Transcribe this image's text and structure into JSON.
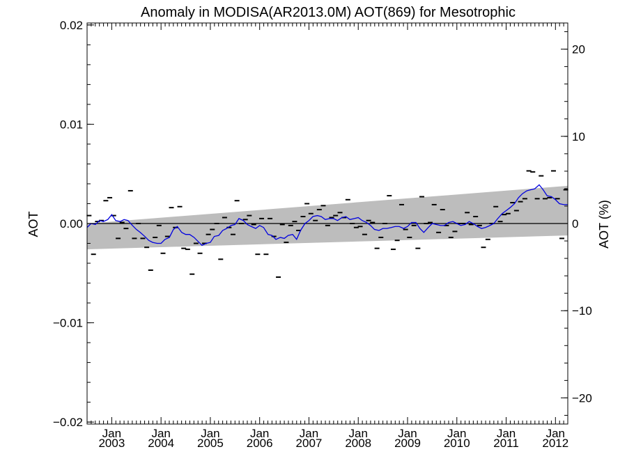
{
  "chart_data": {
    "type": "line",
    "title": "Anomaly in MODISA(AR2013.0M) AOT(869) for Mesotrophic",
    "ylabel": "AOT",
    "ylabel_right": "AOT (%)",
    "xlabel": "",
    "x_range": [
      2002.5,
      2012.25
    ],
    "ylim": [
      -0.0202,
      0.0202
    ],
    "ylim_right": [
      -23,
      23
    ],
    "y_ticks": [
      {
        "value": 0.02,
        "label": "0.02"
      },
      {
        "value": 0.01,
        "label": "0.01"
      },
      {
        "value": 0.0,
        "label": "0.00"
      },
      {
        "value": -0.01,
        "label": "−0.01"
      },
      {
        "value": -0.02,
        "label": "−0.02"
      }
    ],
    "y_right_ticks": [
      {
        "value": 20,
        "label": "20"
      },
      {
        "value": 10,
        "label": "10"
      },
      {
        "value": 0,
        "label": "0"
      },
      {
        "value": -10,
        "label": "−10"
      },
      {
        "value": -20,
        "label": "−20"
      }
    ],
    "x_ticks": [
      {
        "x": 2003.0,
        "month": "Jan",
        "year": "2003"
      },
      {
        "x": 2004.0,
        "month": "Jan",
        "year": "2004"
      },
      {
        "x": 2005.0,
        "month": "Jan",
        "year": "2005"
      },
      {
        "x": 2006.0,
        "month": "Jan",
        "year": "2006"
      },
      {
        "x": 2007.0,
        "month": "Jan",
        "year": "2007"
      },
      {
        "x": 2008.0,
        "month": "Jan",
        "year": "2008"
      },
      {
        "x": 2009.0,
        "month": "Jan",
        "year": "2009"
      },
      {
        "x": 2010.0,
        "month": "Jan",
        "year": "2010"
      },
      {
        "x": 2011.0,
        "month": "Jan",
        "year": "2011"
      },
      {
        "x": 2012.0,
        "month": "Jan",
        "year": "2012"
      }
    ],
    "trend_band": {
      "upper": [
        [
          2002.5,
          0.0
        ],
        [
          2012.25,
          0.0038
        ]
      ],
      "lower": [
        [
          2002.5,
          -0.0026
        ],
        [
          2012.25,
          -0.0012
        ]
      ]
    },
    "zero_line": 0.0,
    "series": [
      {
        "kind": "monthly_anomaly_markers",
        "color": "#000000",
        "points": [
          [
            2002.54,
            0.0008
          ],
          [
            2002.63,
            -0.0031
          ],
          [
            2002.71,
            0.0002
          ],
          [
            2002.79,
            0.0003
          ],
          [
            2002.88,
            0.0023
          ],
          [
            2002.96,
            0.0026
          ],
          [
            2003.04,
            0.0008
          ],
          [
            2003.13,
            -0.0015
          ],
          [
            2003.21,
            0.0001
          ],
          [
            2003.29,
            -0.0005
          ],
          [
            2003.38,
            0.0033
          ],
          [
            2003.46,
            -0.0015
          ],
          [
            2003.54,
            0.0
          ],
          [
            2003.63,
            -0.0015
          ],
          [
            2003.71,
            -0.0024
          ],
          [
            2003.79,
            -0.0047
          ],
          [
            2003.88,
            -0.0014
          ],
          [
            2003.96,
            -0.0002
          ],
          [
            2004.04,
            -0.003
          ],
          [
            2004.13,
            -0.0013
          ],
          [
            2004.21,
            0.0016
          ],
          [
            2004.29,
            -0.0004
          ],
          [
            2004.38,
            0.0017
          ],
          [
            2004.46,
            -0.0025
          ],
          [
            2004.54,
            -0.0026
          ],
          [
            2004.63,
            -0.0051
          ],
          [
            2004.71,
            -0.002
          ],
          [
            2004.79,
            -0.003
          ],
          [
            2004.88,
            -0.002
          ],
          [
            2004.96,
            -0.0011
          ],
          [
            2005.04,
            -0.0006
          ],
          [
            2005.13,
            0.0
          ],
          [
            2005.21,
            -0.0036
          ],
          [
            2005.29,
            0.0006
          ],
          [
            2005.38,
            -0.0004
          ],
          [
            2005.46,
            -0.0011
          ],
          [
            2005.54,
            0.0023
          ],
          [
            2005.63,
            0.0
          ],
          [
            2005.71,
            0.0004
          ],
          [
            2005.79,
            0.0008
          ],
          [
            2005.88,
            -0.0001
          ],
          [
            2005.96,
            -0.0031
          ],
          [
            2006.04,
            0.0005
          ],
          [
            2006.13,
            -0.0031
          ],
          [
            2006.21,
            0.0005
          ],
          [
            2006.29,
            -0.0013
          ],
          [
            2006.38,
            -0.0054
          ],
          [
            2006.46,
            -0.0001
          ],
          [
            2006.54,
            -0.0019
          ],
          [
            2006.63,
            -0.0002
          ],
          [
            2006.71,
            0.0002
          ],
          [
            2006.79,
            -0.0007
          ],
          [
            2006.88,
            0.0007
          ],
          [
            2006.96,
            0.002
          ],
          [
            2007.04,
            0.001
          ],
          [
            2007.13,
            0.0003
          ],
          [
            2007.21,
            0.0014
          ],
          [
            2007.29,
            0.0018
          ],
          [
            2007.38,
            -0.0002
          ],
          [
            2007.46,
            0.0006
          ],
          [
            2007.54,
            0.0008
          ],
          [
            2007.63,
            0.0011
          ],
          [
            2007.71,
            0.0006
          ],
          [
            2007.79,
            0.0024
          ],
          [
            2007.88,
            0.0
          ],
          [
            2007.96,
            -0.0004
          ],
          [
            2008.04,
            -0.0003
          ],
          [
            2008.13,
            -0.0011
          ],
          [
            2008.21,
            0.0003
          ],
          [
            2008.29,
            0.0001
          ],
          [
            2008.38,
            -0.0025
          ],
          [
            2008.46,
            -0.0014
          ],
          [
            2008.54,
            0.0
          ],
          [
            2008.63,
            0.0028
          ],
          [
            2008.71,
            -0.0026
          ],
          [
            2008.79,
            -0.0017
          ],
          [
            2008.88,
            0.0019
          ],
          [
            2008.96,
            -0.0006
          ],
          [
            2009.04,
            -0.0014
          ],
          [
            2009.13,
            -0.0002
          ],
          [
            2009.21,
            -0.0025
          ],
          [
            2009.29,
            0.0027
          ],
          [
            2009.38,
            0.0
          ],
          [
            2009.46,
            0.0001
          ],
          [
            2009.54,
            0.0019
          ],
          [
            2009.63,
            -0.0009
          ],
          [
            2009.71,
            0.0014
          ],
          [
            2009.79,
            -0.0002
          ],
          [
            2009.88,
            -0.0014
          ],
          [
            2009.96,
            -0.0008
          ],
          [
            2010.04,
            0.0
          ],
          [
            2010.13,
            0.0
          ],
          [
            2010.21,
            0.0011
          ],
          [
            2010.29,
            -0.0001
          ],
          [
            2010.38,
            0.0007
          ],
          [
            2010.46,
            -0.0002
          ],
          [
            2010.54,
            -0.0024
          ],
          [
            2010.63,
            -0.0016
          ],
          [
            2010.71,
            0.0
          ],
          [
            2010.79,
            0.0017
          ],
          [
            2010.88,
            0.0002
          ],
          [
            2010.96,
            0.0009
          ],
          [
            2011.04,
            0.001
          ],
          [
            2011.13,
            0.0021
          ],
          [
            2011.21,
            0.0013
          ],
          [
            2011.29,
            0.0022
          ],
          [
            2011.38,
            0.0025
          ],
          [
            2011.46,
            0.0053
          ],
          [
            2011.54,
            0.0052
          ],
          [
            2011.63,
            0.0025
          ],
          [
            2011.71,
            0.0048
          ],
          [
            2011.79,
            0.0025
          ],
          [
            2011.88,
            0.0026
          ],
          [
            2011.96,
            0.0053
          ],
          [
            2012.04,
            0.0025
          ],
          [
            2012.13,
            -0.0015
          ],
          [
            2012.21,
            0.0034
          ]
        ]
      },
      {
        "kind": "running_mean",
        "color": "#0000e0",
        "points": [
          [
            2002.5,
            -0.0004
          ],
          [
            2002.58,
            0.0
          ],
          [
            2002.67,
            -0.0001
          ],
          [
            2002.75,
            0.0003
          ],
          [
            2002.83,
            0.0002
          ],
          [
            2002.92,
            0.0004
          ],
          [
            2003.0,
            0.0009
          ],
          [
            2003.08,
            0.0003
          ],
          [
            2003.17,
            0.0002
          ],
          [
            2003.25,
            0.0004
          ],
          [
            2003.33,
            0.0003
          ],
          [
            2003.42,
            -0.0002
          ],
          [
            2003.5,
            -0.0006
          ],
          [
            2003.58,
            -0.0009
          ],
          [
            2003.67,
            -0.0013
          ],
          [
            2003.75,
            -0.0017
          ],
          [
            2003.83,
            -0.0019
          ],
          [
            2003.92,
            -0.002
          ],
          [
            2004.0,
            -0.002
          ],
          [
            2004.08,
            -0.0016
          ],
          [
            2004.17,
            -0.0014
          ],
          [
            2004.25,
            -0.0006
          ],
          [
            2004.33,
            -0.0003
          ],
          [
            2004.42,
            -0.0009
          ],
          [
            2004.5,
            -0.0011
          ],
          [
            2004.58,
            -0.0011
          ],
          [
            2004.67,
            -0.0014
          ],
          [
            2004.75,
            -0.0018
          ],
          [
            2004.83,
            -0.0022
          ],
          [
            2004.92,
            -0.002
          ],
          [
            2005.0,
            -0.0019
          ],
          [
            2005.08,
            -0.0013
          ],
          [
            2005.17,
            -0.0012
          ],
          [
            2005.25,
            -0.0007
          ],
          [
            2005.33,
            -0.0005
          ],
          [
            2005.42,
            -0.0002
          ],
          [
            2005.5,
            -0.0001
          ],
          [
            2005.58,
            0.0005
          ],
          [
            2005.67,
            0.0003
          ],
          [
            2005.75,
            -0.0001
          ],
          [
            2005.83,
            -0.0003
          ],
          [
            2005.92,
            -0.0005
          ],
          [
            2006.0,
            -0.0002
          ],
          [
            2006.08,
            -0.0004
          ],
          [
            2006.17,
            -0.0011
          ],
          [
            2006.25,
            -0.0012
          ],
          [
            2006.33,
            -0.0016
          ],
          [
            2006.42,
            -0.0014
          ],
          [
            2006.5,
            -0.0015
          ],
          [
            2006.58,
            -0.0012
          ],
          [
            2006.67,
            -0.0011
          ],
          [
            2006.75,
            -0.0016
          ],
          [
            2006.83,
            -0.0007
          ],
          [
            2006.92,
            0.0
          ],
          [
            2007.0,
            0.0003
          ],
          [
            2007.08,
            0.0007
          ],
          [
            2007.17,
            0.0008
          ],
          [
            2007.25,
            0.0007
          ],
          [
            2007.33,
            0.0004
          ],
          [
            2007.42,
            0.0005
          ],
          [
            2007.5,
            0.0005
          ],
          [
            2007.58,
            0.0003
          ],
          [
            2007.67,
            0.0006
          ],
          [
            2007.75,
            0.0007
          ],
          [
            2007.83,
            0.0004
          ],
          [
            2007.92,
            0.0005
          ],
          [
            2008.0,
            0.0006
          ],
          [
            2008.08,
            0.0003
          ],
          [
            2008.17,
            0.0001
          ],
          [
            2008.25,
            -0.0002
          ],
          [
            2008.33,
            -0.0006
          ],
          [
            2008.42,
            -0.0007
          ],
          [
            2008.5,
            -0.0005
          ],
          [
            2008.58,
            -0.0005
          ],
          [
            2008.67,
            -0.0004
          ],
          [
            2008.75,
            -0.0003
          ],
          [
            2008.83,
            -0.0003
          ],
          [
            2008.92,
            -0.0005
          ],
          [
            2009.0,
            -0.0003
          ],
          [
            2009.08,
            0.0001
          ],
          [
            2009.17,
            0.0001
          ],
          [
            2009.25,
            -0.0005
          ],
          [
            2009.33,
            -0.0009
          ],
          [
            2009.42,
            -0.0004
          ],
          [
            2009.5,
            0.0
          ],
          [
            2009.58,
            -0.0001
          ],
          [
            2009.67,
            -0.0002
          ],
          [
            2009.75,
            -0.0002
          ],
          [
            2009.83,
            0.0001
          ],
          [
            2009.92,
            0.0002
          ],
          [
            2010.0,
            0.0
          ],
          [
            2010.08,
            -0.0002
          ],
          [
            2010.17,
            -0.0001
          ],
          [
            2010.25,
            0.0002
          ],
          [
            2010.33,
            0.0
          ],
          [
            2010.42,
            -0.0003
          ],
          [
            2010.5,
            -0.0005
          ],
          [
            2010.58,
            -0.0004
          ],
          [
            2010.67,
            -0.0002
          ],
          [
            2010.75,
            0.0
          ],
          [
            2010.83,
            0.0005
          ],
          [
            2010.92,
            0.001
          ],
          [
            2011.0,
            0.0013
          ],
          [
            2011.08,
            0.0016
          ],
          [
            2011.17,
            0.002
          ],
          [
            2011.25,
            0.0026
          ],
          [
            2011.33,
            0.003
          ],
          [
            2011.42,
            0.0033
          ],
          [
            2011.5,
            0.0034
          ],
          [
            2011.58,
            0.0035
          ],
          [
            2011.67,
            0.0039
          ],
          [
            2011.75,
            0.0034
          ],
          [
            2011.83,
            0.0028
          ],
          [
            2011.92,
            0.0027
          ],
          [
            2012.0,
            0.0024
          ],
          [
            2012.08,
            0.002
          ],
          [
            2012.17,
            0.0019
          ],
          [
            2012.25,
            0.0019
          ]
        ]
      }
    ]
  }
}
